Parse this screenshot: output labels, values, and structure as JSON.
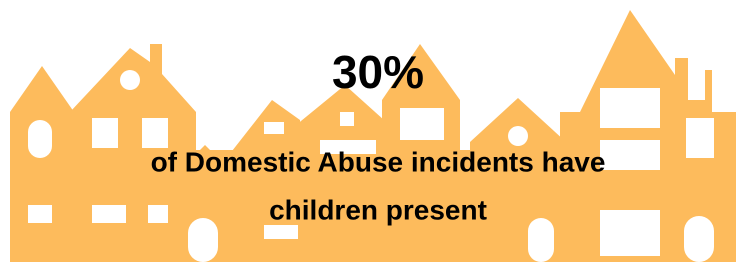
{
  "stat": {
    "value": "30%",
    "description": [
      "of Domestic Abuse incidents have",
      "children present"
    ]
  }
}
